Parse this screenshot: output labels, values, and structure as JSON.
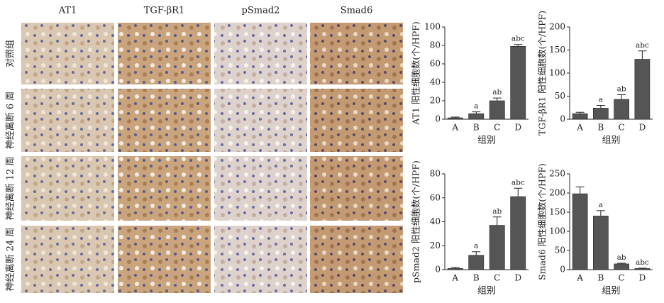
{
  "micrographs": {
    "columns": [
      "AT1",
      "TGF-βR1",
      "pSmad2",
      "Smad6"
    ],
    "rows": [
      "对照组",
      "神经离断 6 周",
      "神经离断 12 周",
      "神经离断 24 周"
    ]
  },
  "chart_data": [
    {
      "type": "bar",
      "y_label": "AT1 阳性细胞数(个/HPF)",
      "x_label": "组别",
      "categories": [
        "A",
        "B",
        "C",
        "D"
      ],
      "values": [
        1.5,
        6,
        20,
        79
      ],
      "errors": [
        0.8,
        2,
        3,
        2
      ],
      "annotations": [
        null,
        "a",
        "ab",
        "abc"
      ],
      "color": "#555555",
      "ylim": [
        0,
        100
      ],
      "yticks": [
        0,
        20,
        40,
        60,
        80,
        100
      ]
    },
    {
      "type": "bar",
      "y_label": "TGF-βR1 阳性细胞数(个/HPF)",
      "x_label": "组别",
      "categories": [
        "A",
        "B",
        "C",
        "D"
      ],
      "values": [
        12,
        24,
        43,
        130
      ],
      "errors": [
        3,
        6,
        10,
        18
      ],
      "annotations": [
        null,
        "a",
        "ab",
        "abc"
      ],
      "color": "#555555",
      "ylim": [
        0,
        200
      ],
      "yticks": [
        0,
        50,
        100,
        150,
        200
      ]
    },
    {
      "type": "bar",
      "y_label": "pSmad2 阳性细胞数(个/HPF)",
      "x_label": "组别",
      "categories": [
        "A",
        "B",
        "C",
        "D"
      ],
      "values": [
        1,
        12,
        37,
        61
      ],
      "errors": [
        1,
        3,
        7,
        7
      ],
      "annotations": [
        null,
        "a",
        "ab",
        "abc"
      ],
      "color": "#555555",
      "ylim": [
        0,
        80
      ],
      "yticks": [
        0,
        20,
        40,
        60,
        80
      ]
    },
    {
      "type": "bar",
      "y_label": "Smad6 阳性细胞数(个/HPF)",
      "x_label": "组别",
      "categories": [
        "A",
        "B",
        "C",
        "D"
      ],
      "values": [
        198,
        140,
        15,
        3
      ],
      "errors": [
        18,
        14,
        2,
        1
      ],
      "annotations": [
        null,
        "a",
        "ab",
        "abc"
      ],
      "color": "#555555",
      "ylim": [
        0,
        250
      ],
      "yticks": [
        0,
        50,
        100,
        150,
        200,
        250
      ]
    }
  ]
}
